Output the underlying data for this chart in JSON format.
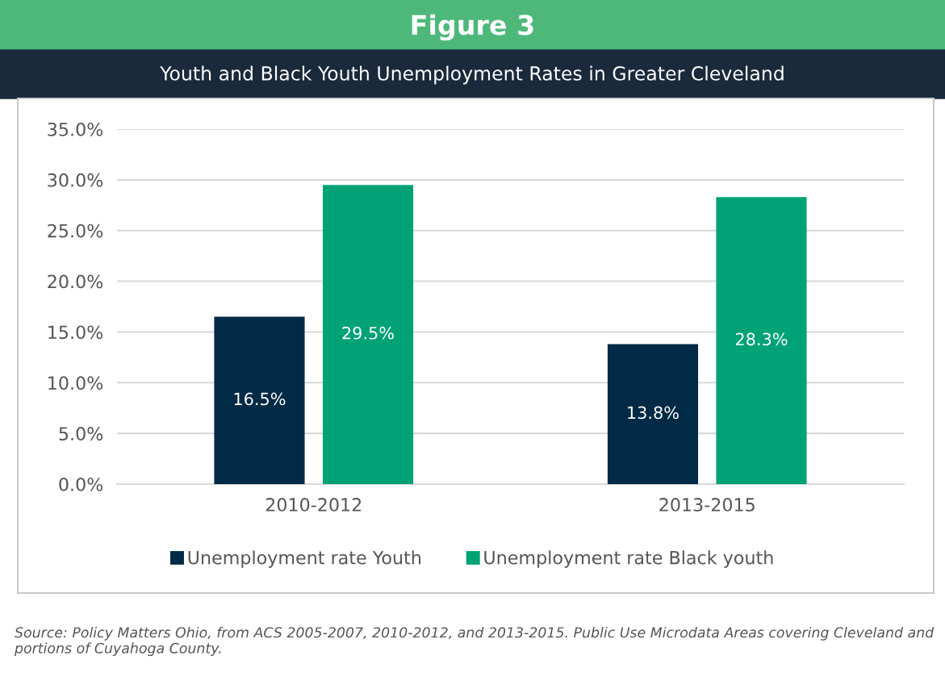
{
  "chart_data": {
    "type": "bar",
    "title": "Figure 3",
    "subtitle": "Youth and Black Youth Unemployment Rates in Greater Cleveland",
    "categories": [
      "2010-2012",
      "2013-2015"
    ],
    "series": [
      {
        "name": "Unemployment rate Youth",
        "color": "#002a45",
        "values": [
          16.5,
          13.8
        ],
        "value_labels": [
          "16.5%",
          "13.8%"
        ]
      },
      {
        "name": "Unemployment rate Black youth",
        "color": "#00a276",
        "values": [
          29.5,
          28.3
        ],
        "value_labels": [
          "29.5%",
          "28.3%"
        ]
      }
    ],
    "ylim": [
      0,
      35
    ],
    "yticks": [
      {
        "value": 0,
        "label": "0.0%"
      },
      {
        "value": 5,
        "label": "5.0%"
      },
      {
        "value": 10,
        "label": "10.0%"
      },
      {
        "value": 15,
        "label": "15.0%"
      },
      {
        "value": 20,
        "label": "20.0%"
      },
      {
        "value": 25,
        "label": "25.0%"
      },
      {
        "value": 30,
        "label": "30.0%"
      },
      {
        "value": 35,
        "label": "35.0%"
      }
    ],
    "grid": "y",
    "legend": "bottom",
    "annotations": [
      "Source: Policy Matters Ohio, from ACS 2005-2007, 2010-2012, and 2013-2015. Public Use Microdata Areas covering Cleveland and portions of Cuyahoga County."
    ]
  }
}
